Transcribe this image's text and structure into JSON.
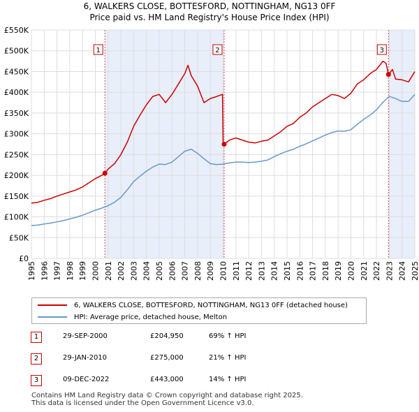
{
  "header": {
    "title": "6, WALKERS CLOSE, BOTTESFORD, NOTTINGHAM, NG13 0FF",
    "subtitle": "Price paid vs. HM Land Registry's House Price Index (HPI)"
  },
  "colors": {
    "property": "#cc0000",
    "hpi": "#6699cc",
    "shade": "#e8eefa",
    "grid": "#dddddd",
    "marker_border": "#cc0000"
  },
  "chart_data": {
    "type": "line",
    "title": "6, WALKERS CLOSE, BOTTESFORD, NOTTINGHAM, NG13 0FF",
    "subtitle": "Price paid vs. HM Land Registry's House Price Index (HPI)",
    "xlabel": "",
    "ylabel": "",
    "xlim": [
      1995,
      2025
    ],
    "ylim": [
      0,
      550000
    ],
    "grid": true,
    "y_ticks": [
      0,
      50000,
      100000,
      150000,
      200000,
      250000,
      300000,
      350000,
      400000,
      450000,
      500000,
      550000
    ],
    "y_tick_labels": [
      "£0",
      "£50K",
      "£100K",
      "£150K",
      "£200K",
      "£250K",
      "£300K",
      "£350K",
      "£400K",
      "£450K",
      "£500K",
      "£550K"
    ],
    "x_ticks": [
      1995,
      1996,
      1997,
      1998,
      1999,
      2000,
      2001,
      2002,
      2003,
      2004,
      2005,
      2006,
      2007,
      2008,
      2009,
      2010,
      2011,
      2012,
      2013,
      2014,
      2015,
      2016,
      2017,
      2018,
      2019,
      2020,
      2021,
      2022,
      2023,
      2024,
      2025
    ],
    "x_tick_labels": [
      "1995",
      "1996",
      "1997",
      "1998",
      "1999",
      "2000",
      "2001",
      "2002",
      "2003",
      "2004",
      "2005",
      "2006",
      "2007",
      "2008",
      "2009",
      "2010",
      "2011",
      "2012",
      "2013",
      "2014",
      "2015",
      "2016",
      "2017",
      "2018",
      "2019",
      "2020",
      "2021",
      "2022",
      "2023",
      "2024",
      "2025"
    ],
    "shaded_regions": [
      {
        "from": 2000.75,
        "to": 2010.08
      },
      {
        "from": 2022.94,
        "to": 2025
      }
    ],
    "series": [
      {
        "name": "6, WALKERS CLOSE, BOTTESFORD, NOTTINGHAM, NG13 0FF (detached house)",
        "color": "#cc0000",
        "x": [
          1995,
          1995.5,
          1996,
          1996.5,
          1997,
          1997.5,
          1998,
          1998.5,
          1999,
          1999.5,
          2000,
          2000.5,
          2000.75,
          2001,
          2001.5,
          2002,
          2002.5,
          2003,
          2003.5,
          2004,
          2004.5,
          2005,
          2005.5,
          2006,
          2006.5,
          2007,
          2007.25,
          2007.5,
          2008,
          2008.5,
          2009,
          2009.5,
          2009.95,
          2010.0,
          2010.08,
          2010.5,
          2011,
          2011.5,
          2012,
          2012.5,
          2013,
          2013.5,
          2014,
          2014.5,
          2015,
          2015.5,
          2016,
          2016.5,
          2017,
          2017.5,
          2018,
          2018.5,
          2019,
          2019.5,
          2020,
          2020.5,
          2021,
          2021.5,
          2022,
          2022.5,
          2022.75,
          2022.94,
          2023.25,
          2023.5,
          2024,
          2024.5,
          2025
        ],
        "values": [
          133000,
          135000,
          140000,
          144000,
          150000,
          155000,
          160000,
          165000,
          172000,
          182000,
          192000,
          200000,
          204950,
          215000,
          228000,
          250000,
          280000,
          318000,
          345000,
          370000,
          390000,
          395000,
          375000,
          395000,
          420000,
          445000,
          465000,
          440000,
          415000,
          375000,
          385000,
          390000,
          395000,
          275000,
          275000,
          285000,
          290000,
          285000,
          280000,
          278000,
          282000,
          285000,
          295000,
          305000,
          318000,
          325000,
          340000,
          350000,
          365000,
          375000,
          385000,
          395000,
          392000,
          385000,
          398000,
          420000,
          430000,
          445000,
          455000,
          475000,
          470000,
          443000,
          455000,
          432000,
          430000,
          425000,
          450000
        ]
      },
      {
        "name": "HPI: Average price, detached house, Melton",
        "color": "#6699cc",
        "x": [
          1995,
          1995.5,
          1996,
          1996.5,
          1997,
          1997.5,
          1998,
          1998.5,
          1999,
          1999.5,
          2000,
          2000.5,
          2001,
          2001.5,
          2002,
          2002.5,
          2003,
          2003.5,
          2004,
          2004.5,
          2005,
          2005.5,
          2006,
          2006.5,
          2007,
          2007.5,
          2008,
          2008.5,
          2009,
          2009.5,
          2010,
          2010.5,
          2011,
          2011.5,
          2012,
          2012.5,
          2013,
          2013.5,
          2014,
          2014.5,
          2015,
          2015.5,
          2016,
          2016.5,
          2017,
          2017.5,
          2018,
          2018.5,
          2019,
          2019.5,
          2020,
          2020.5,
          2021,
          2021.5,
          2022,
          2022.5,
          2023,
          2023.5,
          2024,
          2024.5,
          2025
        ],
        "values": [
          79000,
          80000,
          83000,
          85000,
          88000,
          91000,
          95000,
          99000,
          104000,
          110000,
          116000,
          121000,
          127000,
          135000,
          147000,
          165000,
          185000,
          198000,
          210000,
          220000,
          227000,
          226000,
          232000,
          245000,
          258000,
          263000,
          253000,
          240000,
          228000,
          226000,
          227000,
          230000,
          232000,
          232000,
          231000,
          232000,
          234000,
          237000,
          245000,
          252000,
          258000,
          263000,
          270000,
          276000,
          283000,
          290000,
          297000,
          303000,
          307000,
          306000,
          310000,
          323000,
          335000,
          345000,
          358000,
          376000,
          390000,
          385000,
          378000,
          378000,
          395000
        ]
      }
    ],
    "annotations": [
      {
        "label": "1",
        "x": 2000.75,
        "value": 204950
      },
      {
        "label": "2",
        "x": 2010.08,
        "value": 275000
      },
      {
        "label": "3",
        "x": 2022.94,
        "value": 443000
      }
    ]
  },
  "legend": {
    "property_label": "6, WALKERS CLOSE, BOTTESFORD, NOTTINGHAM, NG13 0FF (detached house)",
    "hpi_label": "HPI: Average price, detached house, Melton"
  },
  "transactions": [
    {
      "num": "1",
      "date": "29-SEP-2000",
      "price": "£204,950",
      "hpi": "69% ↑ HPI"
    },
    {
      "num": "2",
      "date": "29-JAN-2010",
      "price": "£275,000",
      "hpi": "21% ↑ HPI"
    },
    {
      "num": "3",
      "date": "09-DEC-2022",
      "price": "£443,000",
      "hpi": "14% ↑ HPI"
    }
  ],
  "footer": {
    "line1": "Contains HM Land Registry data © Crown copyright and database right 2025.",
    "line2": "This data is licensed under the Open Government Licence v3.0."
  }
}
